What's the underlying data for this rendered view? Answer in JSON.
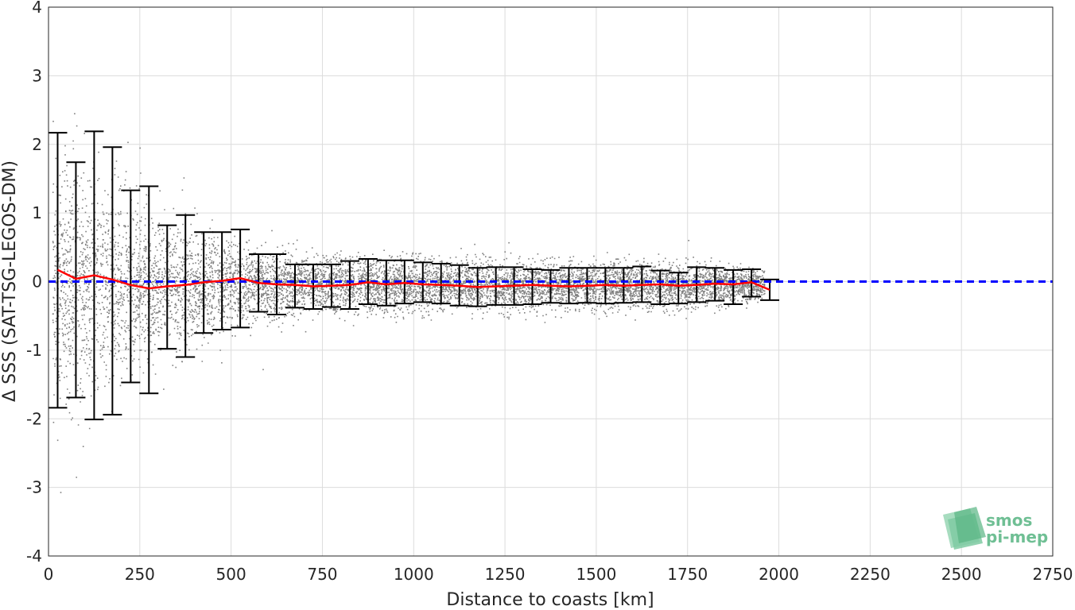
{
  "chart_data": {
    "type": "scatter",
    "xlabel": "Distance to coasts [km]",
    "ylabel": "Δ SSS (SAT-TSG-LEGOS-DM)",
    "xlim": [
      0,
      2750
    ],
    "ylim": [
      -4,
      4
    ],
    "xticks": [
      0,
      250,
      500,
      750,
      1000,
      1250,
      1500,
      1750,
      2000,
      2250,
      2500,
      2750
    ],
    "yticks": [
      -4,
      -3,
      -2,
      -1,
      0,
      1,
      2,
      3,
      4
    ],
    "grid": true,
    "reference_line": {
      "y": 0,
      "color": "#0000ff",
      "style": "dashed"
    },
    "mean_line_color": "#ff0000",
    "errorbar_color": "#000000",
    "scatter_color": "#808080",
    "errorbars": {
      "x": [
        25,
        75,
        125,
        175,
        225,
        275,
        325,
        375,
        425,
        475,
        525,
        575,
        625,
        675,
        725,
        775,
        825,
        875,
        925,
        975,
        1025,
        1075,
        1125,
        1175,
        1225,
        1275,
        1325,
        1375,
        1425,
        1475,
        1525,
        1575,
        1625,
        1675,
        1725,
        1775,
        1825,
        1875,
        1925,
        1975
      ],
      "mean": [
        0.17,
        0.04,
        0.09,
        0.03,
        -0.05,
        -0.1,
        -0.07,
        -0.05,
        -0.01,
        0.01,
        0.05,
        -0.02,
        -0.04,
        -0.05,
        -0.07,
        -0.06,
        -0.05,
        -0.01,
        -0.04,
        -0.02,
        -0.04,
        -0.05,
        -0.06,
        -0.08,
        -0.07,
        -0.06,
        -0.05,
        -0.06,
        -0.07,
        -0.06,
        -0.05,
        -0.06,
        -0.05,
        -0.04,
        -0.06,
        -0.05,
        -0.03,
        -0.04,
        -0.01,
        -0.12
      ],
      "upper": [
        2.17,
        1.74,
        2.19,
        1.96,
        1.33,
        1.39,
        0.82,
        0.97,
        0.72,
        0.72,
        0.76,
        0.4,
        0.4,
        0.25,
        0.25,
        0.25,
        0.3,
        0.33,
        0.31,
        0.31,
        0.28,
        0.26,
        0.24,
        0.2,
        0.21,
        0.21,
        0.18,
        0.17,
        0.2,
        0.2,
        0.2,
        0.2,
        0.22,
        0.16,
        0.13,
        0.21,
        0.2,
        0.17,
        0.18,
        0.03
      ],
      "lower": [
        -1.84,
        -1.69,
        -2.01,
        -1.94,
        -1.47,
        -1.63,
        -0.98,
        -1.1,
        -0.75,
        -0.7,
        -0.67,
        -0.44,
        -0.48,
        -0.38,
        -0.4,
        -0.37,
        -0.4,
        -0.33,
        -0.35,
        -0.32,
        -0.3,
        -0.32,
        -0.35,
        -0.36,
        -0.34,
        -0.34,
        -0.33,
        -0.31,
        -0.32,
        -0.31,
        -0.32,
        -0.31,
        -0.3,
        -0.33,
        -0.32,
        -0.3,
        -0.28,
        -0.33,
        -0.22,
        -0.27
      ]
    },
    "scatter_envelope": {
      "x": [
        10,
        100,
        200,
        300,
        400,
        500,
        600,
        700,
        800,
        900,
        1000,
        1100,
        1200,
        1300,
        1400,
        1500,
        1600,
        1700,
        1800,
        1900,
        1960
      ],
      "spread": [
        1.6,
        1.5,
        1.3,
        0.9,
        0.75,
        0.55,
        0.45,
        0.36,
        0.35,
        0.36,
        0.34,
        0.32,
        0.3,
        0.3,
        0.29,
        0.3,
        0.3,
        0.3,
        0.26,
        0.22,
        0.18
      ]
    }
  },
  "logo": {
    "line1": "smos",
    "line2": "pi-mep"
  }
}
